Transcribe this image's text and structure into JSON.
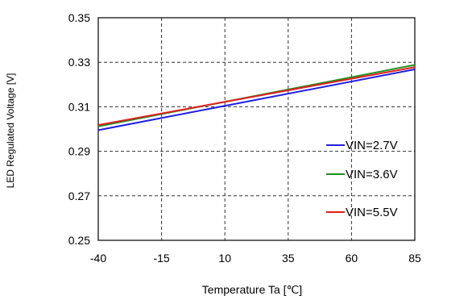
{
  "chart_data": {
    "type": "line",
    "xlabel": "Temperature  Ta [℃]",
    "ylabel": "LED Regulated Voltage [V]",
    "xlim": [
      -40,
      85
    ],
    "ylim": [
      0.25,
      0.35
    ],
    "x_ticks": [
      -40,
      -15,
      10,
      35,
      60,
      85
    ],
    "y_ticks": [
      0.25,
      0.27,
      0.29,
      0.31,
      0.33,
      0.35
    ],
    "x_tick_labels": [
      "-40",
      "-15",
      "10",
      "35",
      "60",
      "85"
    ],
    "y_tick_labels": [
      "0.25",
      "0.27",
      "0.29",
      "0.31",
      "0.33",
      "0.35"
    ],
    "grid": true,
    "grid_style": "dashed",
    "legend_position": "lower-right",
    "series": [
      {
        "name": "VIN=2.7V",
        "color": "#1f1fe0",
        "x": [
          -40,
          85
        ],
        "y": [
          0.2995,
          0.3268
        ]
      },
      {
        "name": "VIN=3.6V",
        "color": "#1f8f1f",
        "x": [
          -40,
          85
        ],
        "y": [
          0.3012,
          0.3288
        ]
      },
      {
        "name": "VIN=5.5V",
        "color": "#e01f1f",
        "x": [
          -40,
          85
        ],
        "y": [
          0.3018,
          0.3278
        ]
      }
    ]
  }
}
